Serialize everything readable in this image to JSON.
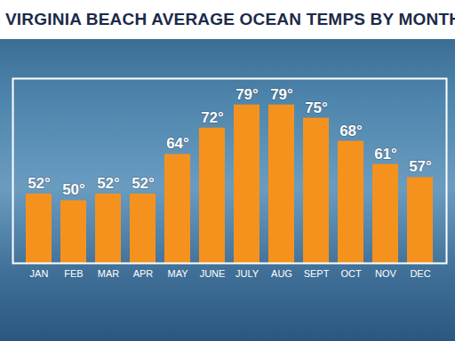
{
  "chart_data": {
    "type": "bar",
    "title": "VIRGINIA BEACH AVERAGE OCEAN TEMPS BY MONTH",
    "categories": [
      "JAN",
      "FEB",
      "MAR",
      "APR",
      "MAY",
      "JUNE",
      "JULY",
      "AUG",
      "SEPT",
      "OCT",
      "NOV",
      "DEC"
    ],
    "values": [
      52,
      50,
      52,
      52,
      64,
      72,
      79,
      79,
      75,
      68,
      61,
      57
    ],
    "value_labels": [
      "52°",
      "50°",
      "52°",
      "52°",
      "64°",
      "72°",
      "79°",
      "79°",
      "75°",
      "68°",
      "61°",
      "57°"
    ],
    "color": "#f5921e",
    "ylim": [
      31,
      87
    ],
    "data_labels": true,
    "tick_labels": "x",
    "grid": false
  }
}
